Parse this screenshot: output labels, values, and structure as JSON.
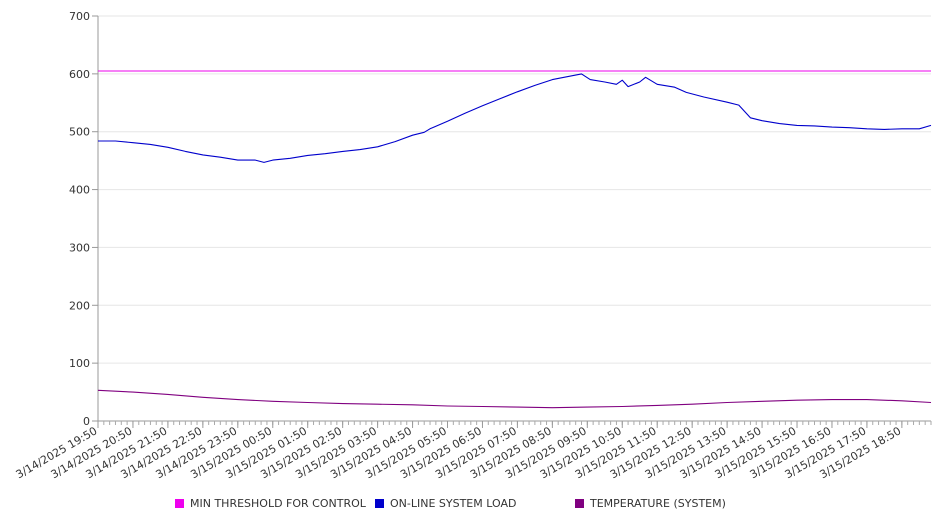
{
  "chart_data": {
    "type": "line",
    "ylim": [
      0,
      700
    ],
    "yticks": [
      0,
      100,
      200,
      300,
      400,
      500,
      600,
      700
    ],
    "xlim": [
      "3/14/2025 19:50",
      "3/15/2025 19:40"
    ],
    "xticks": [
      "3/14/2025 19:50",
      "3/14/2025 20:50",
      "3/14/2025 21:50",
      "3/14/2025 22:50",
      "3/14/2025 23:50",
      "3/15/2025 00:50",
      "3/15/2025 01:50",
      "3/15/2025 02:50",
      "3/15/2025 03:50",
      "3/15/2025 04:50",
      "3/15/2025 05:50",
      "3/15/2025 06:50",
      "3/15/2025 07:50",
      "3/15/2025 08:50",
      "3/15/2025 09:50",
      "3/15/2025 10:50",
      "3/15/2025 11:50",
      "3/15/2025 12:50",
      "3/15/2025 13:50",
      "3/15/2025 14:50",
      "3/15/2025 15:50",
      "3/15/2025 16:50",
      "3/15/2025 17:50",
      "3/15/2025 18:50"
    ],
    "grid": true,
    "legend_position": "bottom",
    "series": [
      {
        "name": "MIN THRESHOLD FOR CONTROL",
        "color": "#ee00ee",
        "points": [
          [
            "3/14/2025 19:50",
            605
          ],
          [
            "3/15/2025 19:40",
            605
          ]
        ]
      },
      {
        "name": "ON-LINE SYSTEM LOAD",
        "color": "#0000cc",
        "points": [
          [
            "3/14/2025 19:50",
            484
          ],
          [
            "3/14/2025 20:20",
            484
          ],
          [
            "3/14/2025 20:50",
            481
          ],
          [
            "3/14/2025 21:20",
            478
          ],
          [
            "3/14/2025 21:50",
            473
          ],
          [
            "3/14/2025 22:20",
            466
          ],
          [
            "3/14/2025 22:50",
            460
          ],
          [
            "3/14/2025 23:20",
            456
          ],
          [
            "3/14/2025 23:50",
            451
          ],
          [
            "3/15/2025 00:20",
            451
          ],
          [
            "3/15/2025 00:35",
            447
          ],
          [
            "3/15/2025 00:50",
            451
          ],
          [
            "3/15/2025 01:20",
            454
          ],
          [
            "3/15/2025 01:50",
            459
          ],
          [
            "3/15/2025 02:20",
            462
          ],
          [
            "3/15/2025 02:50",
            466
          ],
          [
            "3/15/2025 03:20",
            469
          ],
          [
            "3/15/2025 03:50",
            474
          ],
          [
            "3/15/2025 04:20",
            483
          ],
          [
            "3/15/2025 04:50",
            494
          ],
          [
            "3/15/2025 05:10",
            499
          ],
          [
            "3/15/2025 05:20",
            505
          ],
          [
            "3/15/2025 05:50",
            518
          ],
          [
            "3/15/2025 06:20",
            532
          ],
          [
            "3/15/2025 06:50",
            545
          ],
          [
            "3/15/2025 07:20",
            557
          ],
          [
            "3/15/2025 07:50",
            569
          ],
          [
            "3/15/2025 08:20",
            580
          ],
          [
            "3/15/2025 08:50",
            590
          ],
          [
            "3/15/2025 09:20",
            596
          ],
          [
            "3/15/2025 09:40",
            600
          ],
          [
            "3/15/2025 09:55",
            590
          ],
          [
            "3/15/2025 10:20",
            586
          ],
          [
            "3/15/2025 10:40",
            582
          ],
          [
            "3/15/2025 10:50",
            589
          ],
          [
            "3/15/2025 11:00",
            578
          ],
          [
            "3/15/2025 11:20",
            586
          ],
          [
            "3/15/2025 11:30",
            594
          ],
          [
            "3/15/2025 11:50",
            582
          ],
          [
            "3/15/2025 12:20",
            577
          ],
          [
            "3/15/2025 12:40",
            568
          ],
          [
            "3/15/2025 13:10",
            560
          ],
          [
            "3/15/2025 13:50",
            551
          ],
          [
            "3/15/2025 14:10",
            546
          ],
          [
            "3/15/2025 14:30",
            524
          ],
          [
            "3/15/2025 14:50",
            519
          ],
          [
            "3/15/2025 15:20",
            514
          ],
          [
            "3/15/2025 15:50",
            511
          ],
          [
            "3/15/2025 16:20",
            510
          ],
          [
            "3/15/2025 16:50",
            508
          ],
          [
            "3/15/2025 17:20",
            507
          ],
          [
            "3/15/2025 17:50",
            505
          ],
          [
            "3/15/2025 18:20",
            504
          ],
          [
            "3/15/2025 18:50",
            505
          ],
          [
            "3/15/2025 19:20",
            505
          ],
          [
            "3/15/2025 19:40",
            511
          ]
        ]
      },
      {
        "name": "TEMPERATURE (SYSTEM)",
        "color": "#800080",
        "points": [
          [
            "3/14/2025 19:50",
            53
          ],
          [
            "3/14/2025 20:50",
            50
          ],
          [
            "3/14/2025 21:50",
            46
          ],
          [
            "3/14/2025 22:50",
            41
          ],
          [
            "3/14/2025 23:50",
            37
          ],
          [
            "3/15/2025 00:50",
            34
          ],
          [
            "3/15/2025 01:50",
            32
          ],
          [
            "3/15/2025 02:50",
            30
          ],
          [
            "3/15/2025 03:50",
            29
          ],
          [
            "3/15/2025 04:50",
            28
          ],
          [
            "3/15/2025 05:50",
            26
          ],
          [
            "3/15/2025 06:50",
            25
          ],
          [
            "3/15/2025 07:50",
            24
          ],
          [
            "3/15/2025 08:50",
            23
          ],
          [
            "3/15/2025 09:50",
            24
          ],
          [
            "3/15/2025 10:50",
            25
          ],
          [
            "3/15/2025 11:50",
            27
          ],
          [
            "3/15/2025 12:50",
            29
          ],
          [
            "3/15/2025 13:50",
            32
          ],
          [
            "3/15/2025 14:50",
            34
          ],
          [
            "3/15/2025 15:50",
            36
          ],
          [
            "3/15/2025 16:50",
            37
          ],
          [
            "3/15/2025 17:50",
            37
          ],
          [
            "3/15/2025 18:50",
            35
          ],
          [
            "3/15/2025 19:40",
            32
          ]
        ]
      }
    ]
  }
}
